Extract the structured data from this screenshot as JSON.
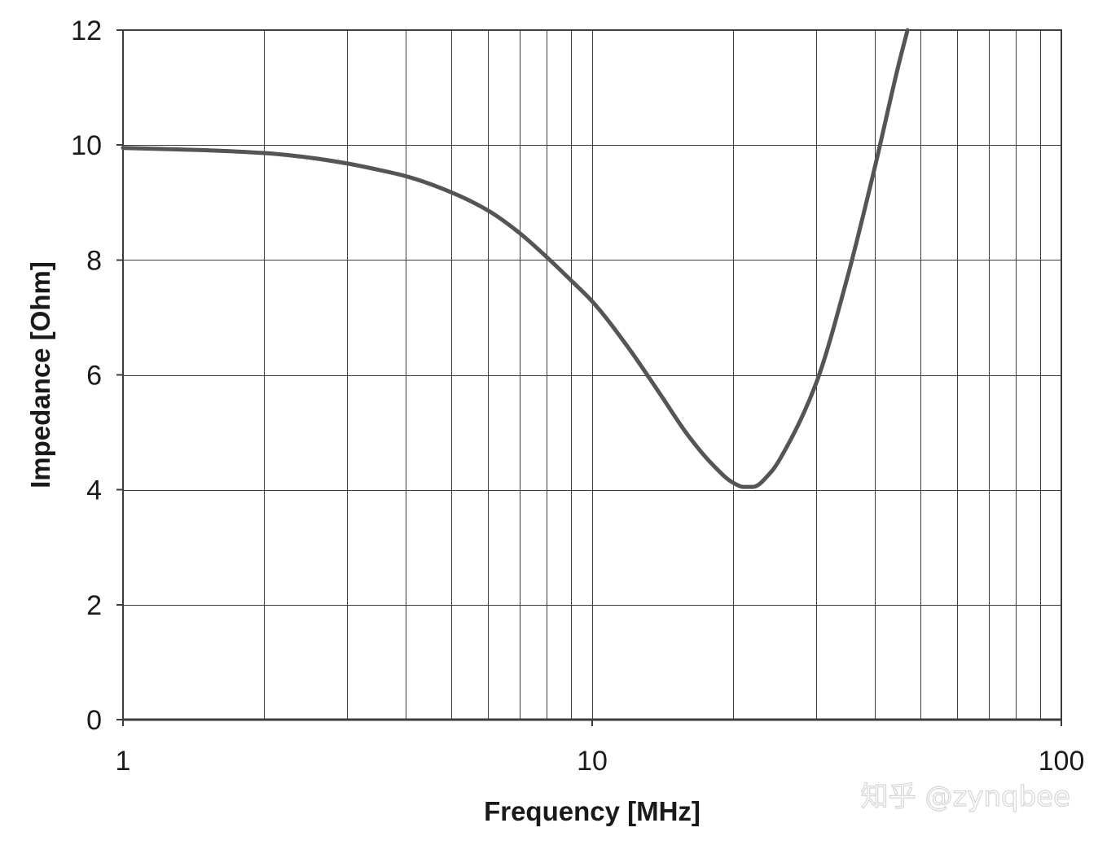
{
  "chart_data": {
    "type": "line",
    "title": "",
    "xlabel": "Frequency [MHz]",
    "ylabel": "Impedance [Ohm]",
    "x_scale": "log",
    "xlim": [
      1,
      100
    ],
    "ylim": [
      0,
      12
    ],
    "x_ticks": [
      1,
      10,
      100
    ],
    "x_tick_labels": [
      "1",
      "10",
      "100"
    ],
    "y_ticks": [
      0,
      2,
      4,
      6,
      8,
      10,
      12
    ],
    "y_tick_labels": [
      "0",
      "2",
      "4",
      "6",
      "8",
      "10",
      "12"
    ],
    "grid": true,
    "legend": "none",
    "series": [
      {
        "color": "#555555",
        "x": [
          1,
          1.5,
          2,
          2.5,
          3,
          3.5,
          4,
          5,
          6,
          7,
          8,
          9,
          10,
          12,
          14,
          16,
          18,
          20,
          21,
          22,
          24,
          26,
          30,
          35,
          40,
          45,
          47
        ],
        "y": [
          9.95,
          9.91,
          9.86,
          9.78,
          9.68,
          9.57,
          9.46,
          9.18,
          8.86,
          8.47,
          8.05,
          7.65,
          7.28,
          6.45,
          5.65,
          4.95,
          4.45,
          4.12,
          4.05,
          4.05,
          4.3,
          4.75,
          5.85,
          7.7,
          9.6,
          11.4,
          12.0
        ]
      }
    ]
  },
  "watermark": {
    "text": "知乎 @zynqbee"
  }
}
